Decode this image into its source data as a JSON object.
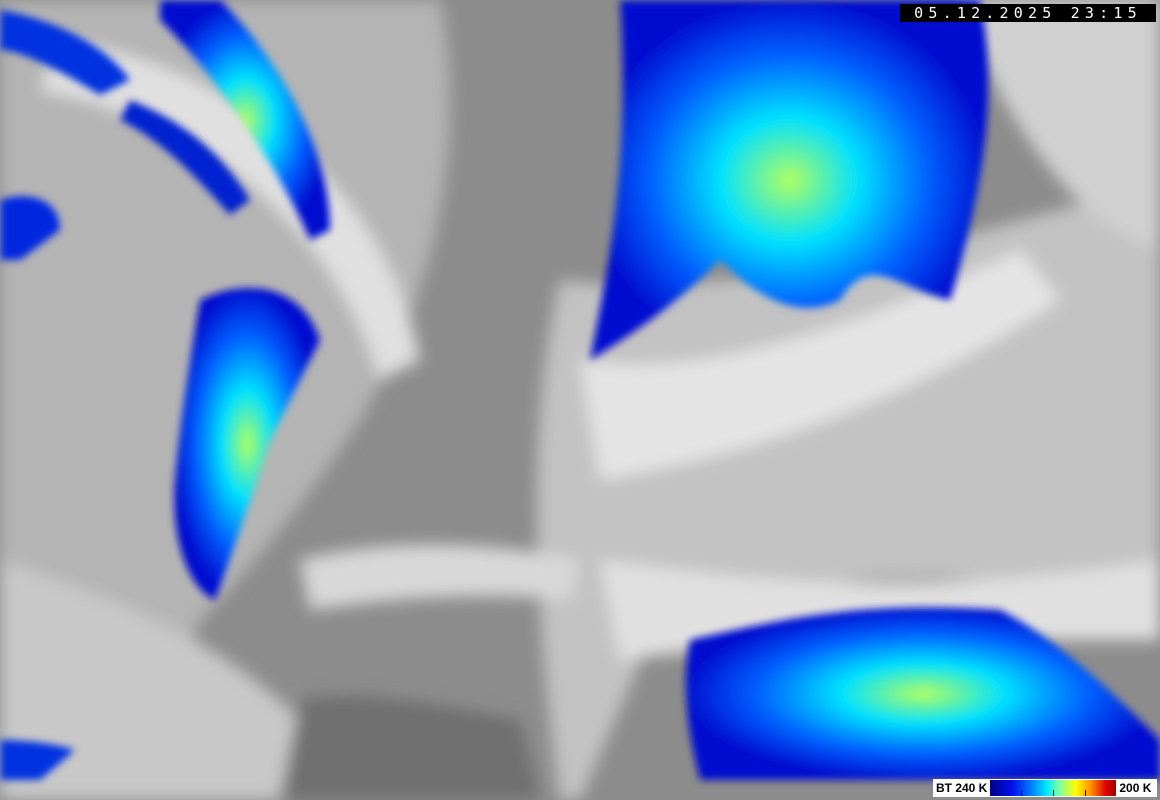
{
  "timestamp": "05.12.2025 23:15",
  "legend": {
    "min_label": "BT 240 K",
    "max_label": "200 K",
    "colors": [
      "#00008a",
      "#0010f0",
      "#0080ff",
      "#00e8ff",
      "#80ffa0",
      "#ffff00",
      "#ff9000",
      "#e00000",
      "#a00000"
    ]
  }
}
